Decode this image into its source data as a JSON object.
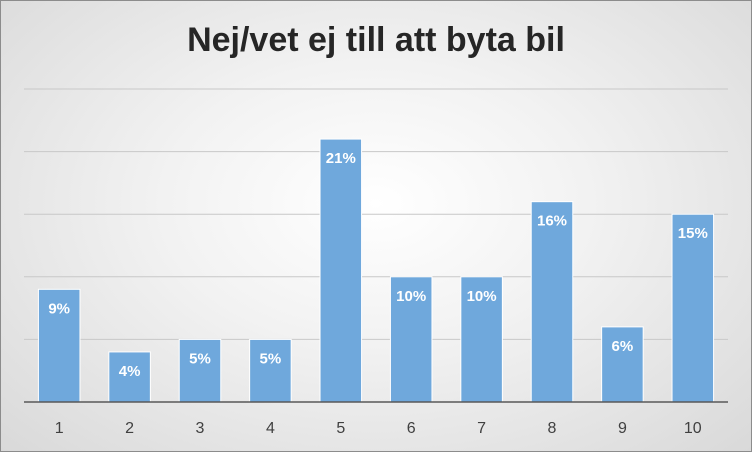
{
  "chart_data": {
    "type": "bar",
    "title": "Nej/vet ej till att byta bil",
    "categories": [
      "1",
      "2",
      "3",
      "4",
      "5",
      "6",
      "7",
      "8",
      "9",
      "10"
    ],
    "values": [
      9,
      4,
      5,
      5,
      21,
      10,
      10,
      16,
      6,
      15
    ],
    "data_labels": [
      "9%",
      "4%",
      "5%",
      "5%",
      "21%",
      "10%",
      "10%",
      "16%",
      "6%",
      "15%"
    ],
    "ylim": [
      0,
      25
    ],
    "grid": true,
    "bar_color": "#6fa8dc",
    "xlabel": "",
    "ylabel": ""
  }
}
